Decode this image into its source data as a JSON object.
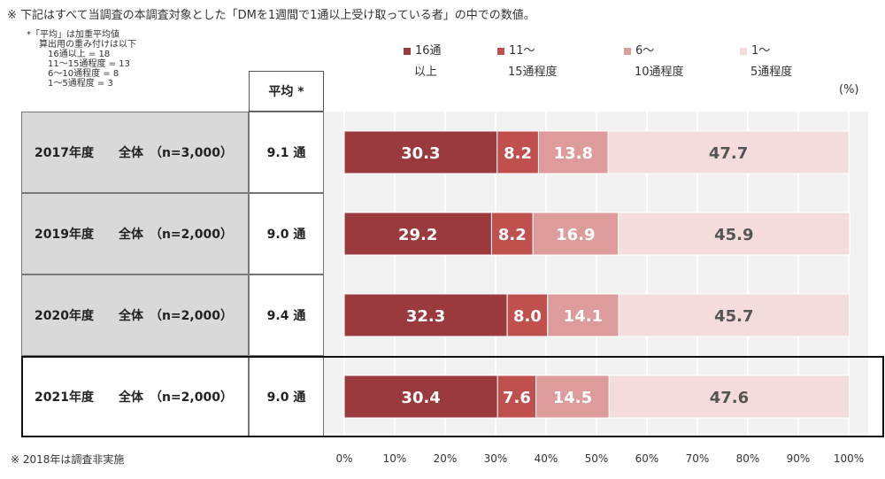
{
  "notes": {
    "top": "※ 下記はすべて当調査の本調査対象とした「DMを1週間で1通以上受け取っている者」の中での数値。",
    "weight_lines": [
      "*「平均」は加重平均値",
      "算出用の重み付けは以下",
      "16通以上 = 18",
      "11～15通程度 = 13",
      "6～10通程度 = 8",
      "1～5通程度 = 3"
    ],
    "bottom": "※ 2018年は調査非実施"
  },
  "table": {
    "avg_header": "平均 *",
    "rows": [
      {
        "label": "2017年度　　全体　（n=3,000）",
        "avg": "9.1 通"
      },
      {
        "label": "2019年度　　全体　（n=2,000）",
        "avg": "9.0 通"
      },
      {
        "label": "2020年度　　全体　（n=2,000）",
        "avg": "9.4 通"
      },
      {
        "label": "2021年度　　全体　（n=2,000）",
        "avg": "9.0 通"
      }
    ]
  },
  "chart_data": {
    "type": "bar",
    "orientation": "horizontal-stacked",
    "unit": "(%)",
    "categories": [
      "2017年度",
      "2019年度",
      "2020年度",
      "2021年度"
    ],
    "series": [
      {
        "name": "16通\n以上",
        "color": "#9a3a3f",
        "values": [
          30.3,
          29.2,
          32.3,
          30.4
        ]
      },
      {
        "name": "11～\n15通程度",
        "color": "#c0504d",
        "values": [
          8.2,
          8.2,
          8.0,
          7.6
        ]
      },
      {
        "name": "6～\n10通程度",
        "color": "#dd9b9b",
        "values": [
          13.8,
          16.9,
          14.1,
          14.5
        ]
      },
      {
        "name": "1～\n5通程度",
        "color": "#f5dcdc",
        "values": [
          47.7,
          45.9,
          45.7,
          47.6
        ]
      }
    ],
    "xlim": [
      0,
      100
    ],
    "xticks": [
      "0%",
      "10%",
      "20%",
      "30%",
      "40%",
      "50%",
      "60%",
      "70%",
      "80%",
      "90%",
      "100%"
    ],
    "grid": true,
    "legend_position": "top"
  }
}
